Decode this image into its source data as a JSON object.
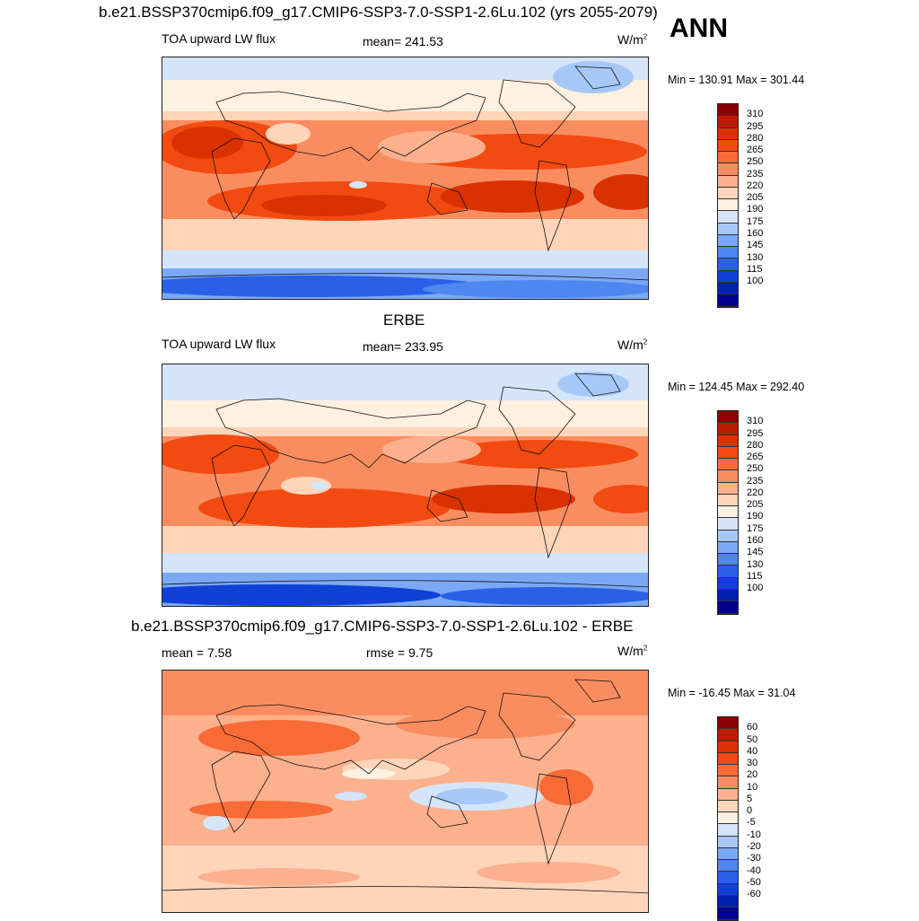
{
  "header": {
    "case_title": "b.e21.BSSP370cmip6.f09_g17.CMIP6-SSP3-7.0-SSP1-2.6Lu.102 (yrs 2055-2079)",
    "season": "ANN"
  },
  "panels": [
    {
      "title": "",
      "left_label": "TOA upward LW flux",
      "center_label": "mean= 241.53",
      "units": "W/m",
      "units_sup": "2",
      "minmax": "Min = 130.91 Max = 301.44",
      "colorbar": {
        "labels": [
          "310",
          "295",
          "280",
          "265",
          "250",
          "235",
          "220",
          "205",
          "190",
          "175",
          "160",
          "145",
          "130",
          "115",
          "100"
        ],
        "colors": [
          "#8b0000",
          "#b81d00",
          "#d93200",
          "#f24a10",
          "#f86b36",
          "#fa8d60",
          "#fcb08e",
          "#fed5b9",
          "#fff0e0",
          "#d4e5fa",
          "#a6c8f8",
          "#7aa8f4",
          "#4f86ef",
          "#2a60e6",
          "#1040d5",
          "#0020b0",
          "#000090"
        ]
      }
    },
    {
      "title": "ERBE",
      "left_label": "TOA upward LW flux",
      "center_label": "mean= 233.95",
      "units": "W/m",
      "units_sup": "2",
      "minmax": "Min = 124.45 Max = 292.40",
      "colorbar": {
        "labels": [
          "310",
          "295",
          "280",
          "265",
          "250",
          "235",
          "220",
          "205",
          "190",
          "175",
          "160",
          "145",
          "130",
          "115",
          "100"
        ],
        "colors": [
          "#8b0000",
          "#b81d00",
          "#d93200",
          "#f24a10",
          "#f86b36",
          "#fa8d60",
          "#fcb08e",
          "#fed5b9",
          "#fff0e0",
          "#d4e5fa",
          "#a6c8f8",
          "#7aa8f4",
          "#4f86ef",
          "#2a60e6",
          "#1040d5",
          "#0020b0",
          "#000090"
        ]
      }
    },
    {
      "title": "b.e21.BSSP370cmip6.f09_g17.CMIP6-SSP3-7.0-SSP1-2.6Lu.102 - ERBE",
      "left_label": "mean =   7.58",
      "center_label": "rmse =   9.75",
      "units": "W/m",
      "units_sup": "2",
      "minmax": "Min = -16.45 Max =  31.04",
      "colorbar": {
        "labels": [
          "60",
          "50",
          "40",
          "30",
          "20",
          "10",
          "5",
          "0",
          "-5",
          "-10",
          "-20",
          "-30",
          "-40",
          "-50",
          "-60"
        ],
        "colors": [
          "#8b0000",
          "#b81d00",
          "#d93200",
          "#f24a10",
          "#f86b36",
          "#fa8d60",
          "#fcb08e",
          "#fed5b9",
          "#fff0e0",
          "#d4e5fa",
          "#a6c8f8",
          "#7aa8f4",
          "#4f86ef",
          "#2a60e6",
          "#1040d5",
          "#0020b0",
          "#000090"
        ]
      }
    }
  ]
}
